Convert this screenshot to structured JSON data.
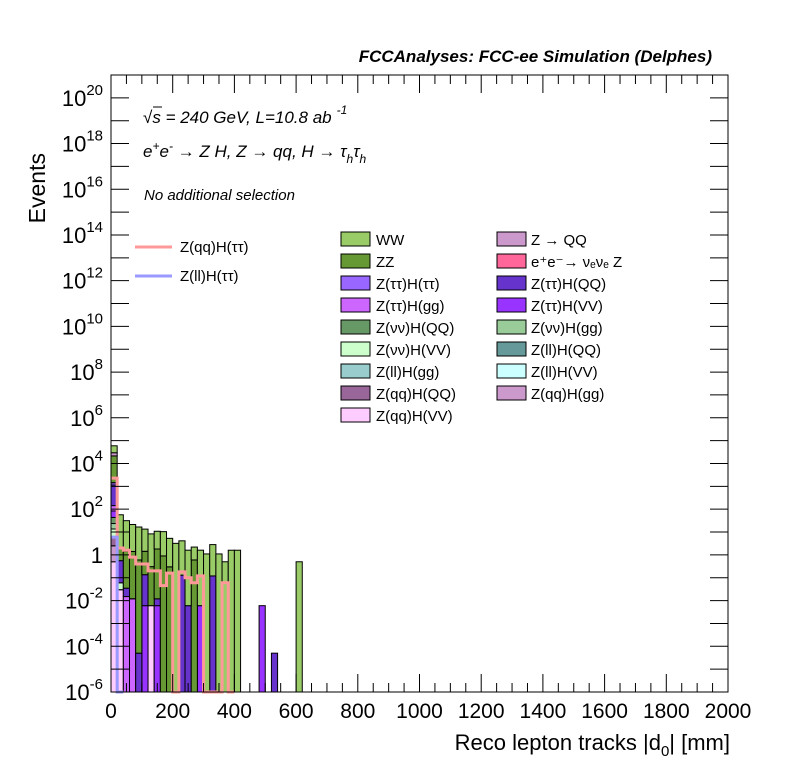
{
  "chart_data": {
    "type": "bar",
    "stacked": true,
    "title": "FCCAnalyses: FCC-ee Simulation (Delphes)",
    "xlabel": "Reco lepton tracks |d",
    "xlabel_sub": "0",
    "xlabel_tail": "| [mm]",
    "ylabel": "Events",
    "xlim": [
      0,
      2000
    ],
    "ylim": [
      1e-06,
      1e+21
    ],
    "ylog": true,
    "bin_width": 20,
    "xticks": [
      0,
      200,
      400,
      600,
      800,
      1000,
      1200,
      1400,
      1600,
      1800,
      2000
    ],
    "yticks_exponents": [
      -6,
      -4,
      -2,
      0,
      2,
      4,
      6,
      8,
      10,
      12,
      14,
      16,
      18,
      20
    ],
    "grid": false,
    "annotations": {
      "energy_main": "s = 240 GeV, L=10.8 ab",
      "energy_sup": "-1",
      "sqrt": "√",
      "process": [
        {
          "t": "e",
          "s": ""
        },
        {
          "t": "+",
          "s": "sup"
        },
        {
          "t": "e",
          "s": ""
        },
        {
          "t": "-",
          "s": "sup"
        },
        {
          "t": " → Z H, Z  → qq, H  → τ",
          "s": ""
        },
        {
          "t": "h",
          "s": "sub"
        },
        {
          "t": "τ",
          "s": ""
        },
        {
          "t": "h",
          "s": "sub"
        }
      ],
      "selection": "No additional selection"
    },
    "line_series": [
      {
        "name": "Z(qq)H(ττ)",
        "color": "#ff9999",
        "bins": [
          [
            0,
            2300
          ],
          [
            20,
            2
          ],
          [
            40,
            1.6
          ],
          [
            60,
            0.8
          ],
          [
            80,
            0.4
          ],
          [
            100,
            0.4
          ],
          [
            120,
            0.2
          ],
          [
            140,
            0.2
          ],
          [
            160,
            0.045
          ],
          [
            180,
            0.16
          ],
          [
            200,
            0
          ],
          [
            220,
            0.18
          ],
          [
            240,
            0.1
          ],
          [
            260,
            0.06
          ],
          [
            280,
            0.12
          ],
          [
            300,
            0
          ],
          [
            320,
            0
          ],
          [
            340,
            0
          ],
          [
            360,
            0.06
          ],
          [
            380,
            0
          ]
        ]
      },
      {
        "name": "Z(ll)H(ττ)",
        "color": "#9999ff",
        "bins": [
          [
            0,
            6
          ],
          [
            20,
            0
          ]
        ]
      }
    ],
    "series": [
      {
        "name": "WW",
        "color": "#99cc66",
        "bins": [
          [
            0,
            30000
          ],
          [
            20,
            55
          ],
          [
            40,
            30
          ],
          [
            60,
            20
          ],
          [
            80,
            16
          ],
          [
            100,
            12
          ],
          [
            120,
            8
          ],
          [
            140,
            9
          ],
          [
            160,
            9.5
          ],
          [
            180,
            5
          ],
          [
            200,
            3.2
          ],
          [
            220,
            4
          ],
          [
            240,
            1.6
          ],
          [
            260,
            1.6
          ],
          [
            280,
            1.6
          ],
          [
            300,
            1.1
          ],
          [
            320,
            2.7
          ],
          [
            340,
            1.1
          ],
          [
            360,
            0.5
          ],
          [
            380,
            1.6
          ],
          [
            400,
            1.6
          ],
          [
            600,
            0.5
          ]
        ]
      },
      {
        "name": "Z → QQ",
        "color": "#cc99cc",
        "bins": [
          [
            0,
            8000
          ]
        ]
      },
      {
        "name": "ZZ",
        "color": "#669933",
        "bins": [
          [
            0,
            20000
          ],
          [
            20,
            1.4
          ],
          [
            40,
            1.4
          ],
          [
            60,
            1.4
          ],
          [
            80,
            0.6
          ],
          [
            100,
            1.3
          ],
          [
            120,
            0.3
          ],
          [
            140,
            1.8
          ],
          [
            160,
            0.9
          ],
          [
            180,
            0.3
          ],
          [
            260,
            0.6
          ]
        ]
      },
      {
        "name": "e⁺e⁻→ νₑνₑ Z",
        "color": "#ff6699",
        "bins": [
          [
            0,
            5
          ]
        ]
      },
      {
        "name": "Z(ττ)H(ττ)",
        "color": "#9966ff",
        "bins": [
          [
            0,
            300
          ]
        ]
      },
      {
        "name": "Z(ττ)H(QQ)",
        "color": "#6633cc",
        "bins": [
          [
            0,
            1000
          ],
          [
            20,
            0.5
          ],
          [
            40,
            0.02
          ],
          [
            60,
            0.0001
          ],
          [
            80,
            5e-05
          ],
          [
            100,
            0.13
          ],
          [
            140,
            0.006
          ],
          [
            220,
            0.13
          ],
          [
            240,
            0.006
          ],
          [
            320,
            0.12
          ],
          [
            520,
            5e-05
          ]
        ]
      },
      {
        "name": "Z(ττ)H(gg)",
        "color": "#cc66ff",
        "bins": [
          [
            0,
            60
          ],
          [
            40,
            0.015
          ],
          [
            60,
            0.012
          ]
        ]
      },
      {
        "name": "Z(ττ)H(VV)",
        "color": "#9933ff",
        "bins": [
          [
            0,
            40
          ],
          [
            100,
            0.006
          ],
          [
            140,
            0.006
          ],
          [
            280,
            0.006
          ],
          [
            480,
            0.006
          ]
        ]
      },
      {
        "name": "Z(νν)H(QQ)",
        "color": "#669966",
        "bins": [
          [
            0,
            20
          ]
        ]
      },
      {
        "name": "Z(νν)H(gg)",
        "color": "#99cc99",
        "bins": [
          [
            0,
            10
          ]
        ]
      },
      {
        "name": "Z(νν)H(VV)",
        "color": "#ccffcc",
        "bins": [
          [
            0,
            8
          ],
          [
            20,
            0.03
          ]
        ]
      },
      {
        "name": "Z(ll)H(QQ)",
        "color": "#669999",
        "bins": [
          [
            0,
            0.05
          ]
        ]
      },
      {
        "name": "Z(ll)H(gg)",
        "color": "#99cccc",
        "bins": [
          [
            0,
            0.01
          ],
          [
            20,
            2e-05
          ]
        ]
      },
      {
        "name": "Z(ll)H(VV)",
        "color": "#ccffff",
        "bins": [
          [
            0,
            0.02
          ]
        ]
      },
      {
        "name": "Z(qq)H(QQ)",
        "color": "#996699",
        "bins": [
          [
            0,
            3
          ]
        ]
      },
      {
        "name": "Z(qq)H(gg)",
        "color": "#cc99cc",
        "bins": [
          [
            0,
            2
          ]
        ]
      },
      {
        "name": "Z(qq)H(VV)",
        "color": "#ffccff",
        "bins": [
          [
            0,
            0.5
          ],
          [
            20,
            0.03
          ],
          [
            120,
            0.006
          ]
        ]
      }
    ],
    "legend_placement": "top-right",
    "legend_left": [
      "WW",
      "ZZ",
      "Z(ττ)H(ττ)",
      "Z(ττ)H(gg)",
      "Z(νν)H(QQ)",
      "Z(νν)H(VV)",
      "Z(ll)H(gg)",
      "Z(qq)H(QQ)",
      "Z(qq)H(VV)"
    ],
    "legend_right": [
      "Z → QQ",
      "e⁺e⁻→ νₑνₑ Z",
      "Z(ττ)H(QQ)",
      "Z(ττ)H(VV)",
      "Z(νν)H(gg)",
      "Z(ll)H(QQ)",
      "Z(ll)H(VV)",
      "Z(qq)H(gg)"
    ]
  }
}
